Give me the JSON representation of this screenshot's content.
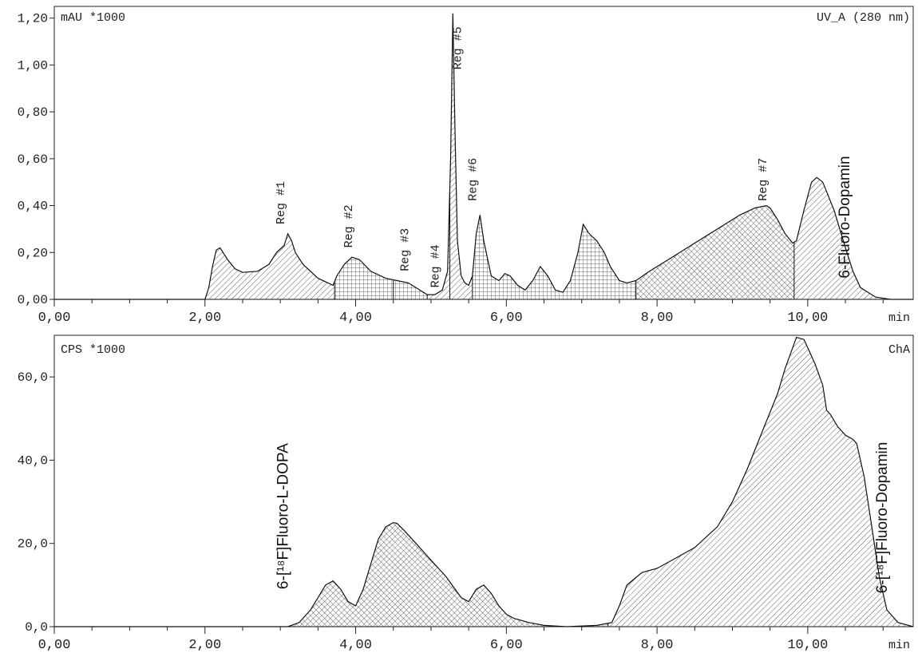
{
  "chart_data": [
    {
      "type": "area",
      "id": "uv",
      "ylabel": "mAU *1000",
      "channel": "UV_A (280 nm)",
      "xunit": "min",
      "xlim": [
        0,
        11.4
      ],
      "ylim": [
        0,
        1.25
      ],
      "x_ticks": [
        "0,00",
        "2,00",
        "4,00",
        "6,00",
        "8,00",
        "10,00"
      ],
      "x_tick_values": [
        0,
        2,
        4,
        6,
        8,
        10
      ],
      "y_ticks": [
        "0,00",
        "0,20",
        "0,40",
        "0,60",
        "0,80",
        "1,00",
        "1,20"
      ],
      "y_tick_values": [
        0,
        0.2,
        0.4,
        0.6,
        0.8,
        1.0,
        1.2
      ],
      "series": [
        {
          "x": [
            0,
            2.0,
            2.05,
            2.1,
            2.15,
            2.2,
            2.3,
            2.4,
            2.5,
            2.7,
            2.85,
            2.95,
            3.05,
            3.1,
            3.15,
            3.2,
            3.3,
            3.5,
            3.7,
            3.75,
            3.85,
            3.95,
            4.05,
            4.2,
            4.4,
            4.55,
            4.7,
            4.85,
            4.95,
            5.05,
            5.15,
            5.22,
            5.26,
            5.29,
            5.32,
            5.35,
            5.4,
            5.45,
            5.5,
            5.55,
            5.6,
            5.65,
            5.7,
            5.8,
            5.9,
            5.98,
            6.05,
            6.15,
            6.25,
            6.35,
            6.45,
            6.55,
            6.65,
            6.75,
            6.85,
            6.95,
            7.02,
            7.1,
            7.2,
            7.3,
            7.38,
            7.5,
            7.6,
            7.72,
            7.9,
            8.2,
            8.5,
            8.8,
            9.1,
            9.3,
            9.45,
            9.5,
            9.6,
            9.7,
            9.8,
            9.85,
            9.95,
            10.05,
            10.12,
            10.2,
            10.35,
            10.5,
            10.6,
            10.7,
            10.9,
            11.1,
            11.4
          ],
          "values": [
            0,
            0,
            0.05,
            0.14,
            0.21,
            0.22,
            0.17,
            0.13,
            0.115,
            0.12,
            0.15,
            0.2,
            0.23,
            0.28,
            0.25,
            0.2,
            0.15,
            0.09,
            0.06,
            0.1,
            0.15,
            0.18,
            0.17,
            0.12,
            0.09,
            0.08,
            0.07,
            0.04,
            0.02,
            0.02,
            0.04,
            0.12,
            0.6,
            1.22,
            0.7,
            0.25,
            0.1,
            0.07,
            0.06,
            0.1,
            0.28,
            0.36,
            0.25,
            0.1,
            0.08,
            0.11,
            0.1,
            0.06,
            0.04,
            0.08,
            0.14,
            0.1,
            0.04,
            0.03,
            0.08,
            0.2,
            0.32,
            0.28,
            0.25,
            0.2,
            0.14,
            0.08,
            0.07,
            0.08,
            0.12,
            0.18,
            0.24,
            0.3,
            0.36,
            0.39,
            0.4,
            0.39,
            0.34,
            0.28,
            0.24,
            0.25,
            0.38,
            0.5,
            0.52,
            0.5,
            0.38,
            0.22,
            0.12,
            0.05,
            0.01,
            0,
            0
          ]
        }
      ],
      "region_boundaries": [
        2.0,
        3.72,
        4.5,
        4.95,
        5.25,
        5.55,
        7.72,
        9.82,
        11.0
      ],
      "region_hatch": [
        "diag",
        "grid",
        "grid",
        "diag",
        "diag",
        "grid",
        "cross",
        "diag"
      ],
      "labels": [
        {
          "text": "Reg #1",
          "x": 3.05,
          "y": 0.32
        },
        {
          "text": "Reg #2",
          "x": 3.95,
          "y": 0.22
        },
        {
          "text": "Reg #3",
          "x": 4.7,
          "y": 0.12
        },
        {
          "text": "Reg #4",
          "x": 5.1,
          "y": 0.05
        },
        {
          "text": "Reg #5",
          "x": 5.4,
          "y": 0.98
        },
        {
          "text": "Reg #6",
          "x": 5.6,
          "y": 0.42
        },
        {
          "text": "Reg #7",
          "x": 9.45,
          "y": 0.42
        },
        {
          "text": "6-Fluoro-Dopamin",
          "x": 10.55,
          "y": 0.09,
          "style": "large"
        }
      ]
    },
    {
      "type": "area",
      "id": "rad",
      "ylabel": "CPS *1000",
      "channel": "ChA",
      "xunit": "min",
      "xlim": [
        0,
        11.4
      ],
      "ylim": [
        0,
        70
      ],
      "x_ticks": [
        "0,00",
        "2,00",
        "4,00",
        "6,00",
        "8,00",
        "10,00"
      ],
      "x_tick_values": [
        0,
        2,
        4,
        6,
        8,
        10
      ],
      "y_ticks": [
        "0,0",
        "20,0",
        "40,0",
        "60,0"
      ],
      "y_tick_values": [
        0,
        20,
        40,
        60
      ],
      "series": [
        {
          "x": [
            0,
            3.1,
            3.25,
            3.4,
            3.5,
            3.6,
            3.7,
            3.8,
            3.9,
            4.0,
            4.1,
            4.2,
            4.3,
            4.4,
            4.5,
            4.55,
            4.65,
            4.8,
            4.9,
            5.0,
            5.1,
            5.2,
            5.3,
            5.4,
            5.5,
            5.6,
            5.7,
            5.8,
            5.9,
            6.0,
            6.1,
            6.3,
            6.5,
            6.8,
            7.2,
            7.4,
            7.5,
            7.6,
            7.8,
            8.0,
            8.2,
            8.5,
            8.8,
            9.0,
            9.2,
            9.4,
            9.6,
            9.7,
            9.8,
            9.85,
            9.95,
            10.0,
            10.1,
            10.2,
            10.25,
            10.3,
            10.4,
            10.5,
            10.6,
            10.65,
            10.75,
            10.85,
            10.95,
            11.05,
            11.2,
            11.4
          ],
          "values": [
            0,
            0,
            1,
            4,
            7,
            10,
            11,
            9,
            6,
            5,
            9,
            15,
            21,
            24,
            25,
            24.8,
            23,
            20,
            18,
            16,
            14,
            12,
            9.5,
            7,
            6,
            9,
            10,
            8,
            5,
            3,
            2,
            1,
            0.3,
            0,
            0.3,
            1,
            5,
            10,
            13,
            14,
            16,
            19,
            24,
            30,
            38,
            47,
            56,
            62,
            67,
            69.5,
            69,
            67,
            63,
            58,
            52,
            51,
            48,
            46,
            45,
            44,
            36,
            24,
            12,
            4,
            1,
            0
          ]
        }
      ],
      "region_boundaries": [
        3.1,
        7.35,
        11.4
      ],
      "region_hatch": [
        "cross",
        "diag"
      ],
      "labels": [
        {
          "text": "6-[¹⁸F]Fluoro-L-DOPA",
          "x": 3.1,
          "y": 9,
          "style": "large"
        },
        {
          "text": "6-[¹⁸F]Fluoro-Dopamin",
          "x": 11.05,
          "y": 8,
          "style": "large"
        }
      ]
    }
  ]
}
